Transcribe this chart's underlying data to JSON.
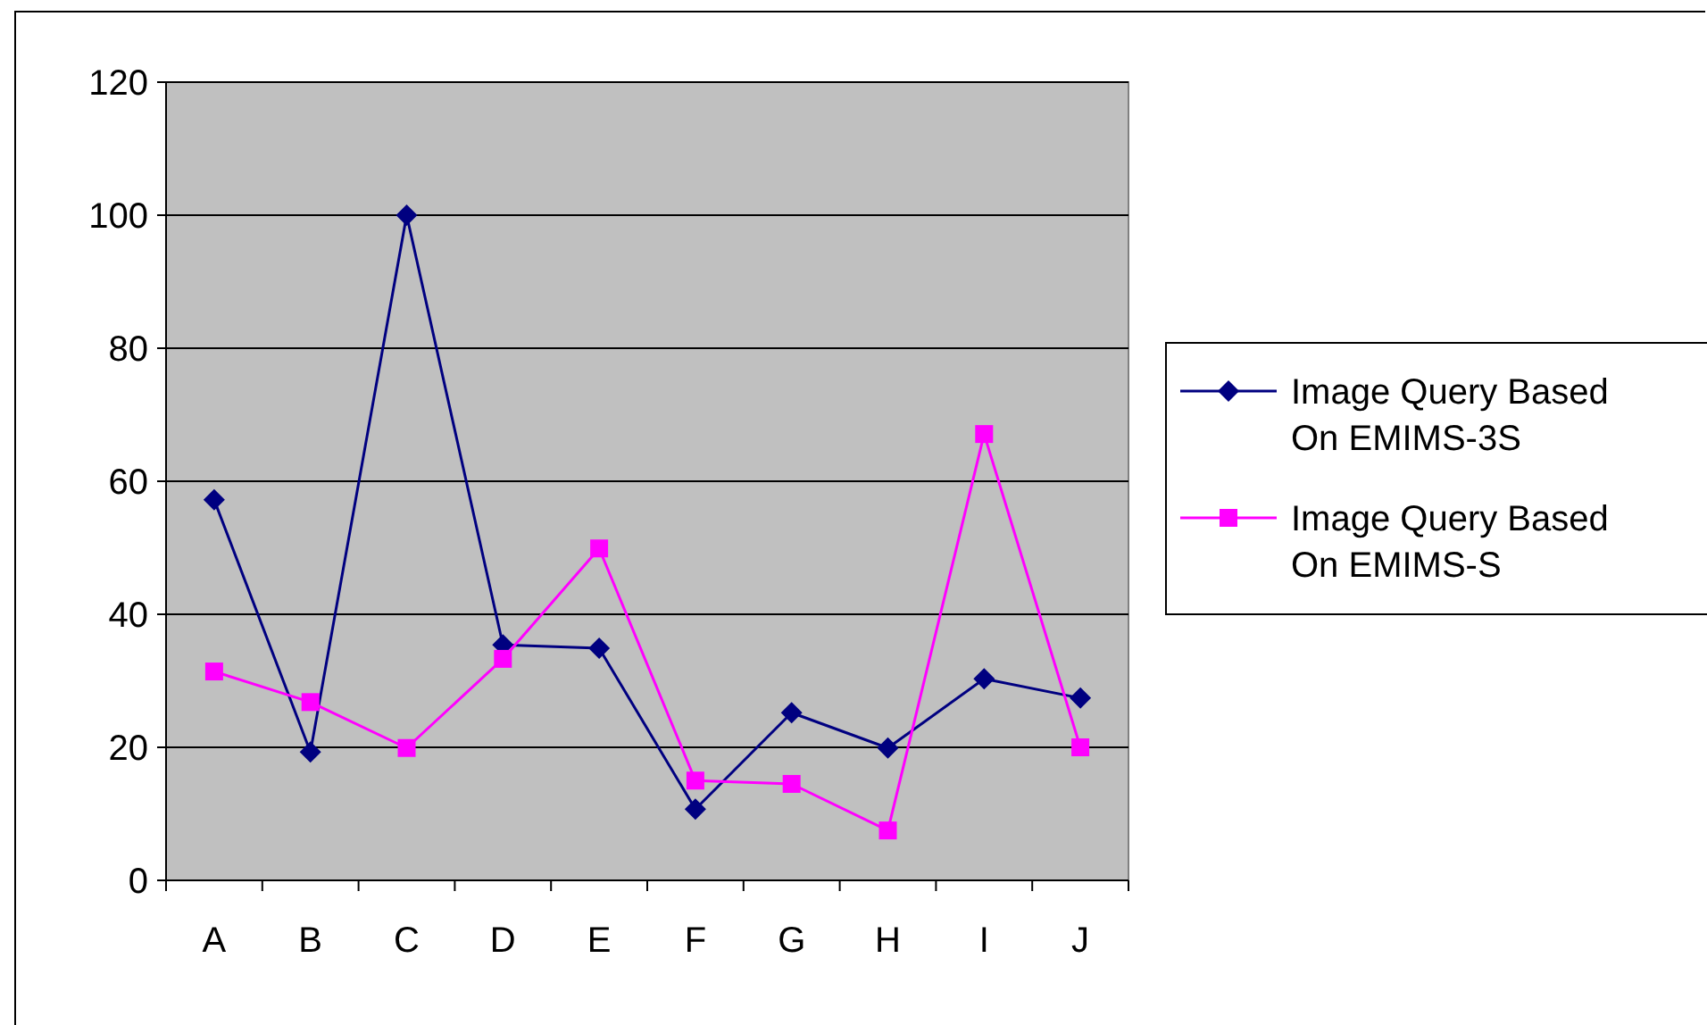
{
  "chart_data": {
    "type": "line",
    "categories": [
      "A",
      "B",
      "C",
      "D",
      "E",
      "F",
      "G",
      "H",
      "I",
      "J"
    ],
    "series": [
      {
        "name": "Image Query Based On EMIMS-3S",
        "color": "#000080",
        "marker": "diamond",
        "values": [
          57.2,
          19.3,
          100,
          35.4,
          34.9,
          10.7,
          25.2,
          19.9,
          30.3,
          27.4
        ]
      },
      {
        "name": "Image Query Based On EMIMS-S",
        "color": "#ff00ff",
        "marker": "square",
        "values": [
          31.4,
          26.8,
          19.9,
          33.3,
          49.9,
          15,
          14.5,
          7.5,
          67.1,
          20
        ]
      }
    ],
    "ylim": [
      0,
      120
    ],
    "yticks": [
      0,
      20,
      40,
      60,
      80,
      100,
      120
    ],
    "grid": "y",
    "legend": "right",
    "line_style": "solid"
  }
}
